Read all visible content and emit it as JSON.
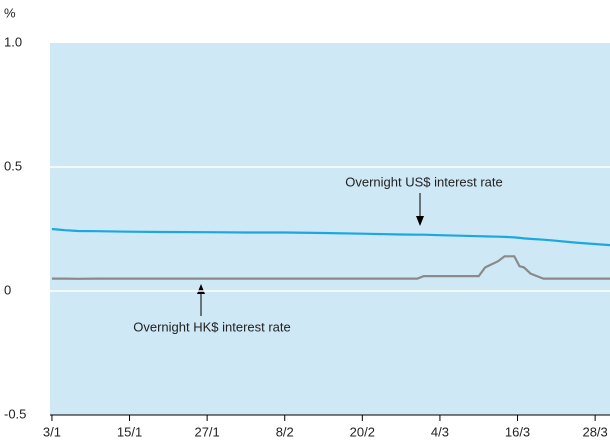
{
  "chart_data": {
    "type": "line",
    "y_label": "%",
    "x": [
      3,
      5,
      7,
      10,
      15,
      20,
      27,
      33,
      39,
      45,
      51,
      57,
      59.5,
      60.5,
      63,
      69,
      70,
      72,
      73,
      74.5,
      75.3,
      76,
      77,
      79,
      80,
      84,
      89.3
    ],
    "series": [
      {
        "name": "Overnight US$ interest rate",
        "color": "#1ba8e0",
        "values": [
          0.25,
          0.245,
          0.242,
          0.241,
          0.239,
          0.238,
          0.237,
          0.236,
          0.236,
          0.234,
          0.231,
          0.228,
          0.227,
          0.227,
          0.225,
          0.221,
          0.22,
          0.219,
          0.218,
          0.216,
          0.214,
          0.212,
          0.21,
          0.207,
          0.205,
          0.195,
          0.185
        ]
      },
      {
        "name": "Overnight HK$ interest rate",
        "color": "#8a8a8a",
        "values": [
          0.05,
          0.05,
          0.049,
          0.05,
          0.05,
          0.05,
          0.05,
          0.05,
          0.05,
          0.05,
          0.05,
          0.05,
          0.05,
          0.06,
          0.06,
          0.06,
          0.095,
          0.12,
          0.14,
          0.14,
          0.1,
          0.095,
          0.07,
          0.05,
          0.05,
          0.05,
          0.05
        ]
      }
    ],
    "annotations": [
      "Overnight US$ interest rate",
      "Overnight HK$ interest rate"
    ],
    "xlim": [
      2.7,
      89.3
    ],
    "xticks": [
      {
        "value": 3,
        "label": "3/1"
      },
      {
        "value": 15,
        "label": "15/1"
      },
      {
        "value": 27,
        "label": "27/1"
      },
      {
        "value": 39,
        "label": "8/2"
      },
      {
        "value": 51,
        "label": "20/2"
      },
      {
        "value": 63,
        "label": "4/3"
      },
      {
        "value": 75,
        "label": "16/3"
      },
      {
        "value": 87,
        "label": "28/3"
      }
    ],
    "ylim": [
      -0.5,
      1
    ],
    "yticks": [
      -0.5,
      0,
      0.5,
      {
        "value": 1,
        "label": "1.0"
      }
    ],
    "grid": true,
    "background": "#cfe8f5"
  }
}
